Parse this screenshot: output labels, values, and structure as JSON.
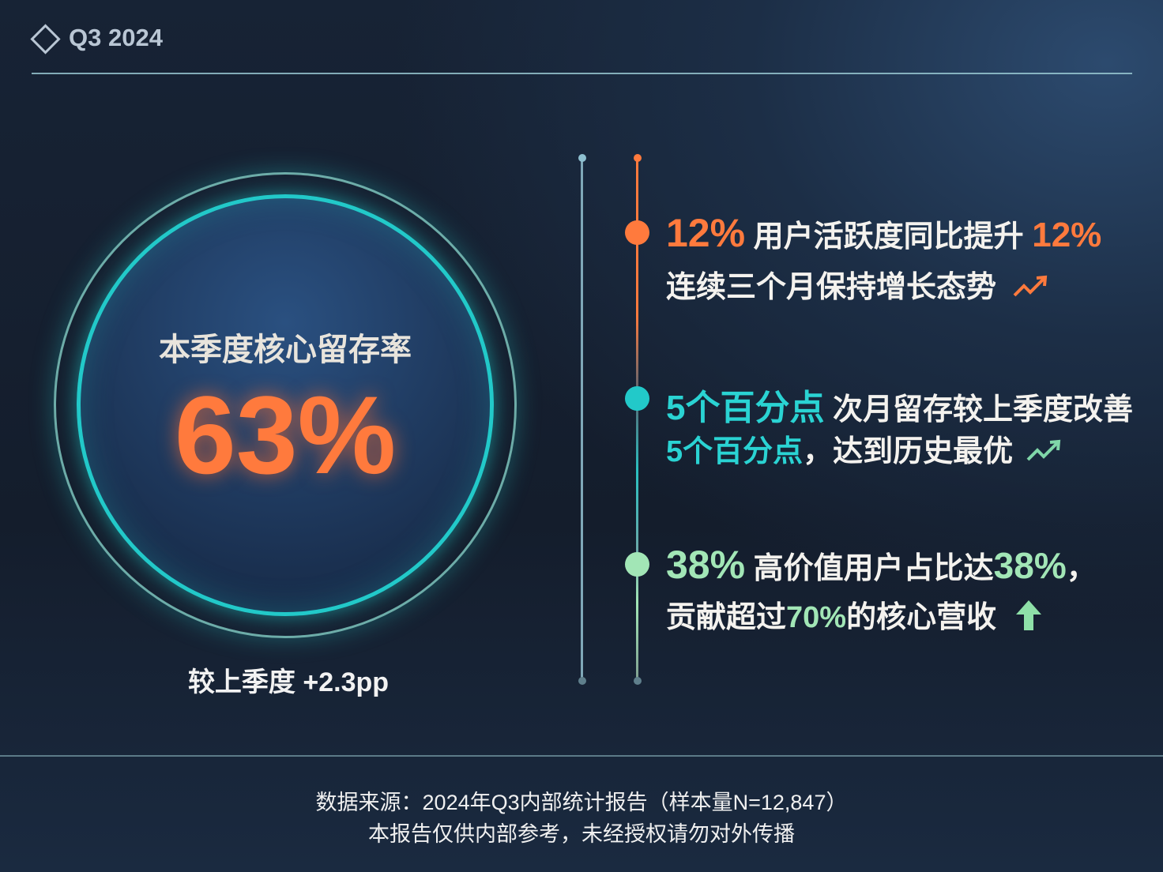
{
  "header": {
    "title": "Q3 2024",
    "icon": "diamond-icon"
  },
  "colors": {
    "accent_orange": "#ff7a3d",
    "accent_teal": "#22c9c9",
    "accent_green": "#a2e6b6"
  },
  "kpi": {
    "label": "本季度核心留存率",
    "value": "63%",
    "delta": "较上季度 +2.3pp"
  },
  "highlights": [
    {
      "num": "12%",
      "text1": "用户活跃度同比提升",
      "num2": "12%",
      "line2": "连续三个月保持增长态势",
      "icon": "trend-up-icon"
    },
    {
      "num": "5个百分点",
      "text1": "次月留存较上季度改善",
      "line2_num": "5个百分点",
      "line2": "，达到历史最优",
      "icon": "trend-up-icon"
    },
    {
      "num": "38%",
      "text1": "高价值用户占比达",
      "num2": "38%",
      "tail": "，",
      "line2_a": "贡献超过",
      "line2_num": "70%",
      "line2_b": "的核心营收",
      "icon": "arrow-up-icon"
    }
  ],
  "footer": {
    "source": "数据来源：2024年Q3内部统计报告（样本量N=12,847）",
    "disclaimer": "本报告仅供内部参考，未经授权请勿对外传播"
  }
}
